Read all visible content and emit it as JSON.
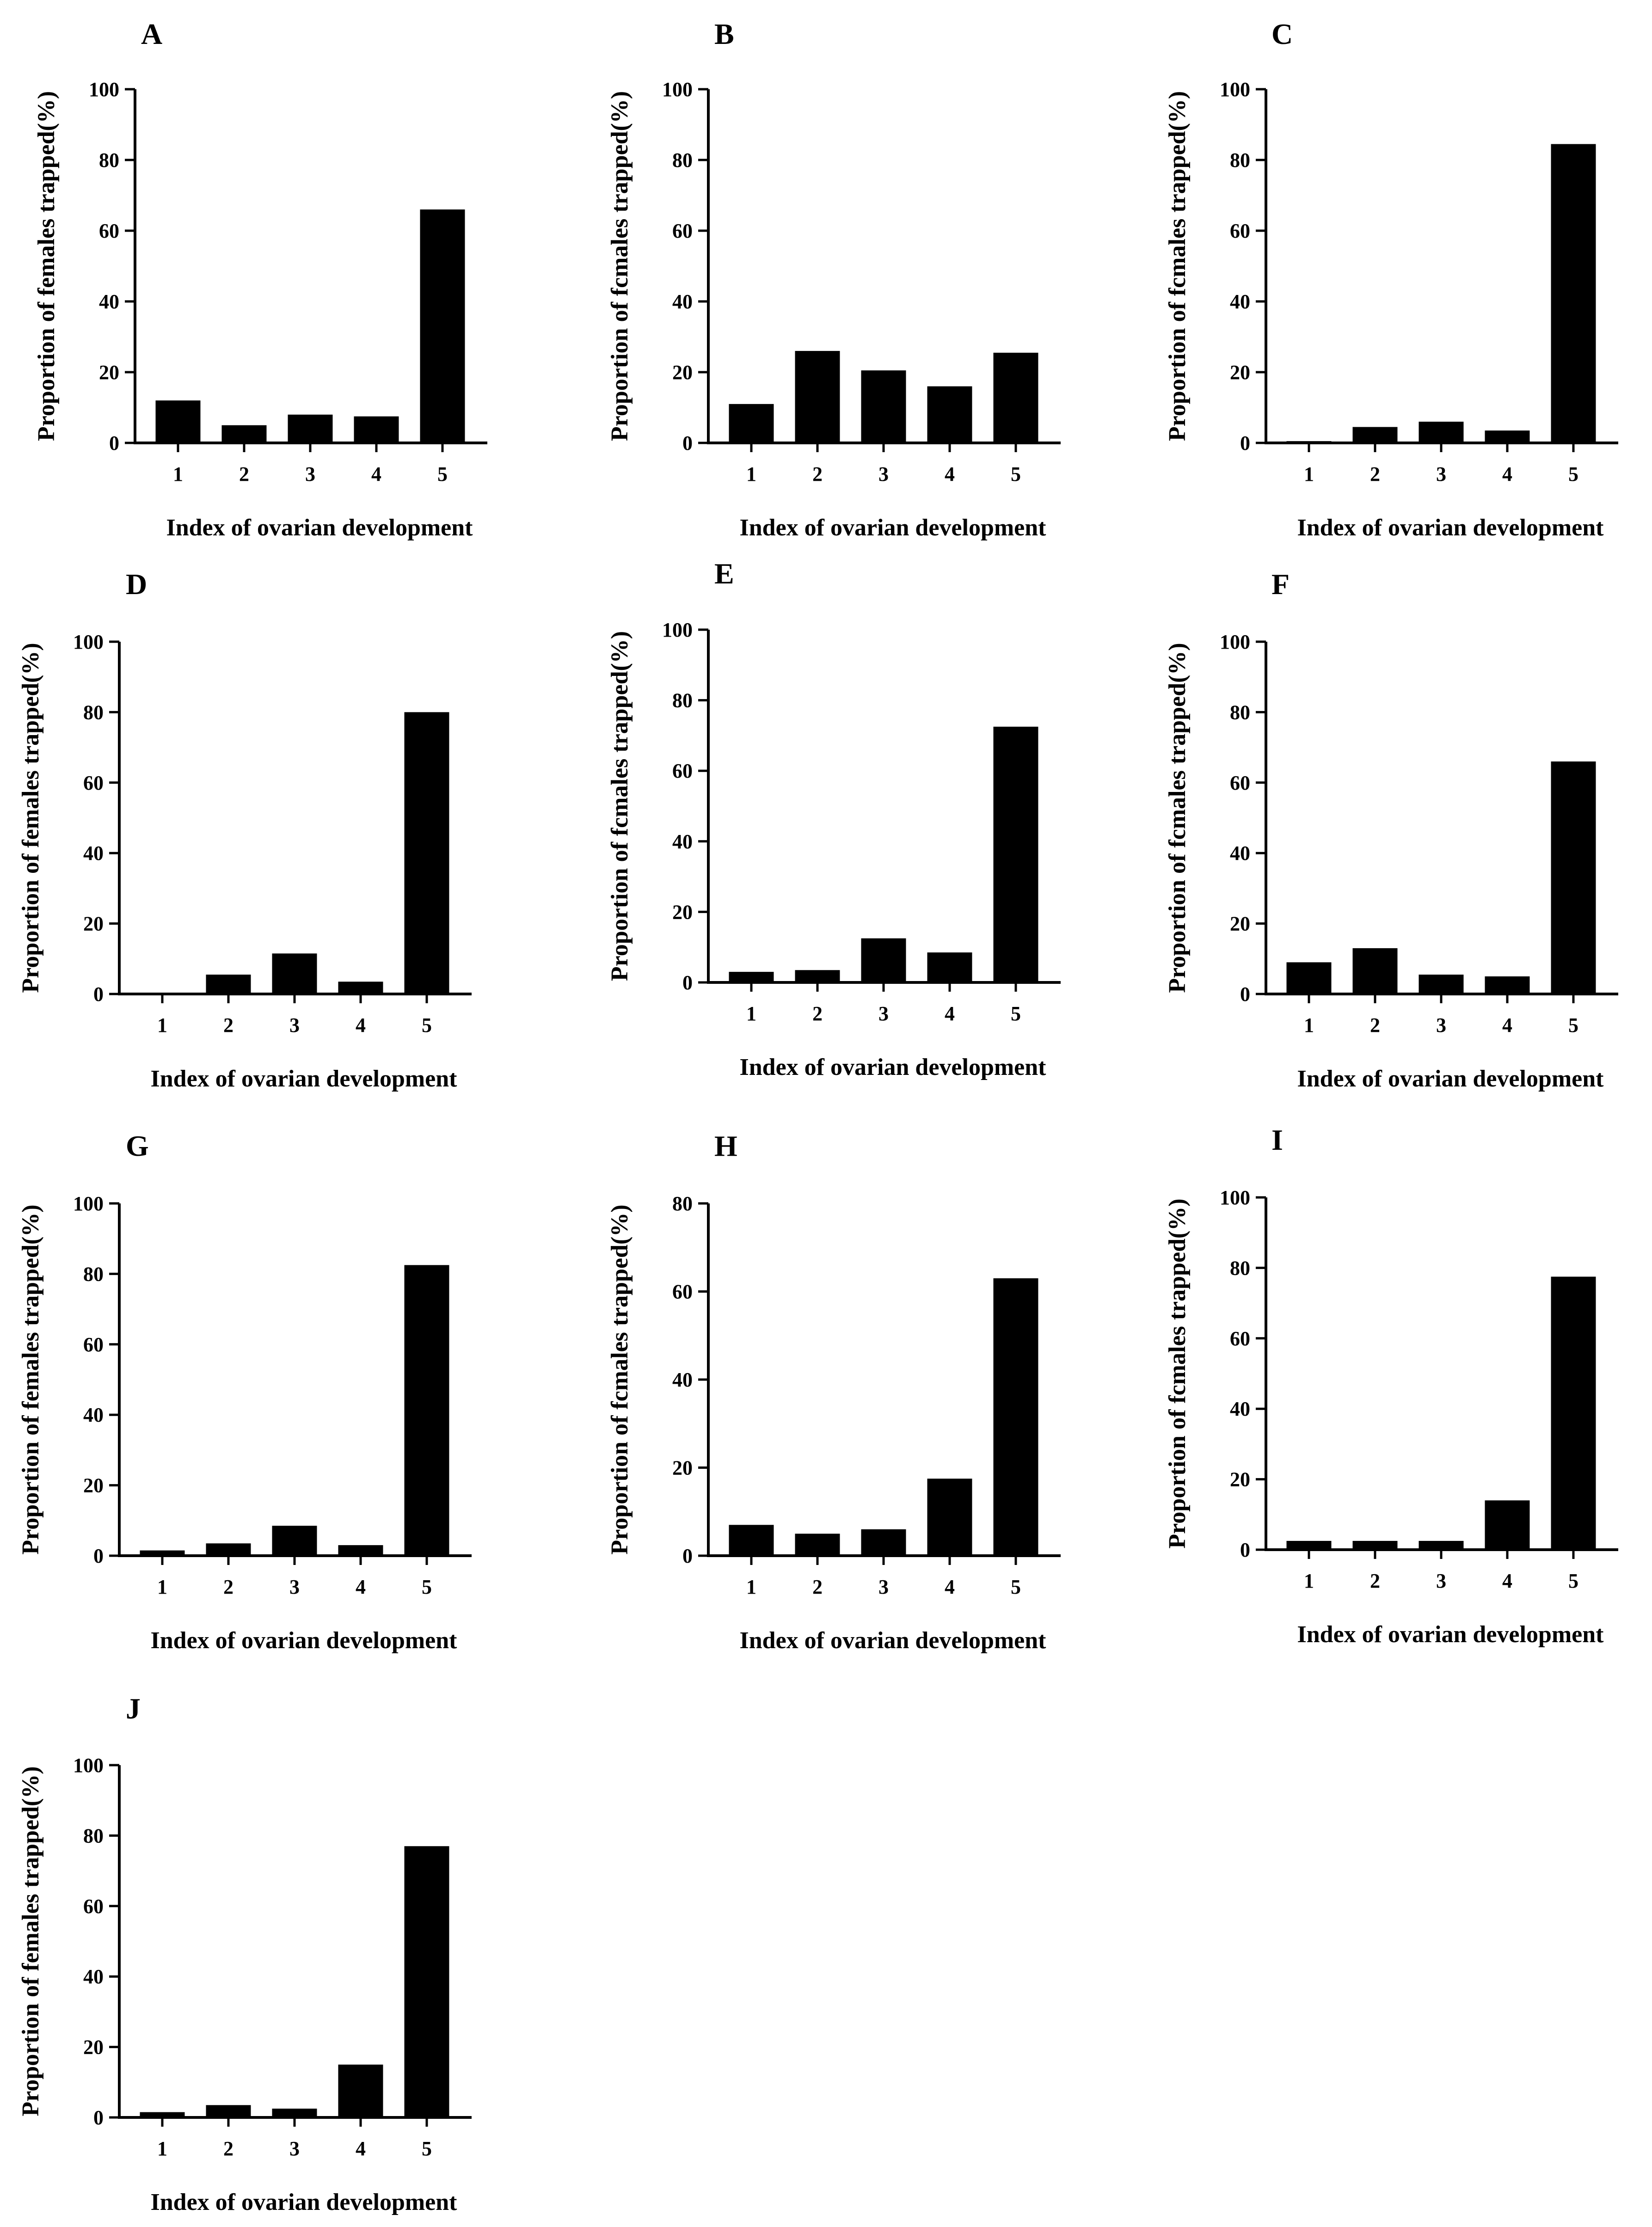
{
  "figure": {
    "bar_color": "#000000",
    "axis_color": "#000000",
    "background": "#ffffff"
  },
  "chart_data": [
    {
      "panel": "A",
      "type": "bar",
      "categories": [
        "1",
        "2",
        "3",
        "4",
        "5"
      ],
      "values": [
        12,
        5,
        8,
        7.5,
        66
      ],
      "ylim": [
        0,
        100
      ],
      "yticks": [
        "0",
        "20",
        "40",
        "60",
        "80",
        "100"
      ],
      "xlabel": "Index of ovarian development",
      "ylabel": "Proportion of females trapped(%)"
    },
    {
      "panel": "B",
      "type": "bar",
      "categories": [
        "1",
        "2",
        "3",
        "4",
        "5"
      ],
      "values": [
        11,
        26,
        20.5,
        16,
        25.5
      ],
      "ylim": [
        0,
        100
      ],
      "yticks": [
        "0",
        "20",
        "40",
        "60",
        "80",
        "100"
      ],
      "xlabel": "Index of ovarian development",
      "ylabel": "Proportion of fcmales trapped(%)"
    },
    {
      "panel": "C",
      "type": "bar",
      "categories": [
        "1",
        "2",
        "3",
        "4",
        "5"
      ],
      "values": [
        0.5,
        4.5,
        6,
        3.5,
        84.5
      ],
      "ylim": [
        0,
        100
      ],
      "yticks": [
        "0",
        "20",
        "40",
        "60",
        "80",
        "100"
      ],
      "xlabel": "Index of ovarian development",
      "ylabel": "Proportion of fcmales trapped(%)"
    },
    {
      "panel": "D",
      "type": "bar",
      "categories": [
        "1",
        "2",
        "3",
        "4",
        "5"
      ],
      "values": [
        0,
        5.5,
        11.5,
        3.5,
        80
      ],
      "ylim": [
        0,
        100
      ],
      "yticks": [
        "0",
        "20",
        "40",
        "60",
        "80",
        "100"
      ],
      "xlabel": "Index of ovarian development",
      "ylabel": "Proportion of females trapped(%)"
    },
    {
      "panel": "E",
      "type": "bar",
      "categories": [
        "1",
        "2",
        "3",
        "4",
        "5"
      ],
      "values": [
        3,
        3.5,
        12.5,
        8.5,
        72.5
      ],
      "ylim": [
        0,
        100
      ],
      "yticks": [
        "0",
        "20",
        "40",
        "60",
        "80",
        "100"
      ],
      "xlabel": "Index of ovarian development",
      "ylabel": "Proportion of fcmales trapped(%)"
    },
    {
      "panel": "F",
      "type": "bar",
      "categories": [
        "1",
        "2",
        "3",
        "4",
        "5"
      ],
      "values": [
        9,
        13,
        5.5,
        5,
        66
      ],
      "ylim": [
        0,
        100
      ],
      "yticks": [
        "0",
        "20",
        "40",
        "60",
        "80",
        "100"
      ],
      "xlabel": "Index of ovarian development",
      "ylabel": "Proportion of fcmales trapped(%)"
    },
    {
      "panel": "G",
      "type": "bar",
      "categories": [
        "1",
        "2",
        "3",
        "4",
        "5"
      ],
      "values": [
        1.5,
        3.5,
        8.5,
        3,
        82.5
      ],
      "ylim": [
        0,
        100
      ],
      "yticks": [
        "0",
        "20",
        "40",
        "60",
        "80",
        "100"
      ],
      "xlabel": "Index of ovarian development",
      "ylabel": "Proportion of females trapped(%)"
    },
    {
      "panel": "H",
      "type": "bar",
      "categories": [
        "1",
        "2",
        "3",
        "4",
        "5"
      ],
      "values": [
        7,
        5,
        6,
        17.5,
        63
      ],
      "ylim": [
        0,
        80
      ],
      "yticks": [
        "0",
        "20",
        "40",
        "60",
        "80"
      ],
      "xlabel": "Index of ovarian development",
      "ylabel": "Proportion of fcmales trapped(%)"
    },
    {
      "panel": "I",
      "type": "bar",
      "categories": [
        "1",
        "2",
        "3",
        "4",
        "5"
      ],
      "values": [
        2.5,
        2.5,
        2.5,
        14,
        77.5
      ],
      "ylim": [
        0,
        100
      ],
      "yticks": [
        "0",
        "20",
        "40",
        "60",
        "80",
        "100"
      ],
      "xlabel": "Index of ovarian development",
      "ylabel": "Proportion of fcmales trapped(%)"
    },
    {
      "panel": "J",
      "type": "bar",
      "categories": [
        "1",
        "2",
        "3",
        "4",
        "5"
      ],
      "values": [
        1.5,
        3.5,
        2.5,
        15,
        77
      ],
      "ylim": [
        0,
        100
      ],
      "yticks": [
        "0",
        "20",
        "40",
        "60",
        "80",
        "100"
      ],
      "xlabel": "Index of ovarian development",
      "ylabel": "Proportion of females trapped(%)"
    }
  ]
}
